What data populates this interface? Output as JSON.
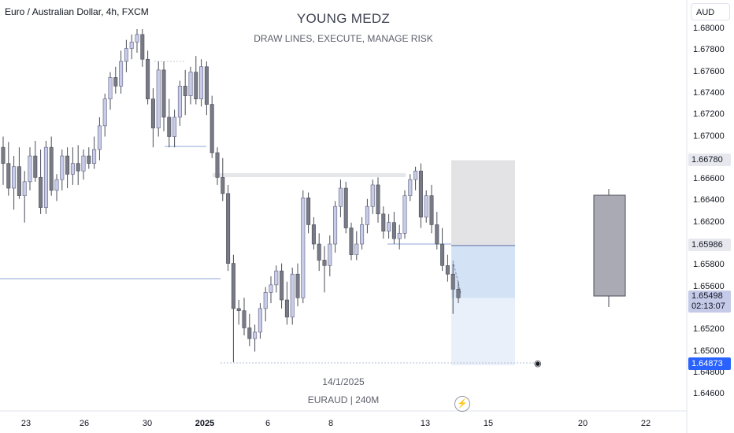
{
  "header": {
    "symbol_title": "Euro / Australian Dollar, 4h, FXCM",
    "currency": "AUD"
  },
  "watermark": {
    "title": "YOUNG MEDZ",
    "subtitle": "DRAW LINES, EXECUTE, MANAGE RISK",
    "date": "14/1/2025",
    "symbol": "EURAUD | 240M"
  },
  "price_tags": {
    "take_profit": "1.66780",
    "entry": "1.65986",
    "current": "1.65498",
    "countdown": "02:13:07",
    "stop": "1.64873"
  },
  "colors": {
    "up_body": "#c8cce8",
    "down_body": "#787b86",
    "wick": "#4a4d57",
    "stop_zone": "#e3e3e6",
    "target_zone": "#d3e3f5",
    "target_zone_light": "#e9f0fa",
    "accent_blue": "#2962ff"
  },
  "icons": {
    "lightning": "lightning-icon",
    "eye": "eye-icon"
  },
  "chart_data": {
    "type": "candlestick",
    "title": "Euro / Australian Dollar, 4h, FXCM",
    "y_axis": {
      "ticks": [
        "1.68000",
        "1.67800",
        "1.67600",
        "1.67400",
        "1.67200",
        "1.67000",
        "1.66800",
        "1.66600",
        "1.66400",
        "1.66200",
        "1.66000",
        "1.65800",
        "1.65600",
        "1.65400",
        "1.65200",
        "1.65000",
        "1.64800",
        "1.64600"
      ],
      "range": [
        1.6455,
        1.681
      ]
    },
    "x_axis": {
      "ticks": [
        {
          "label": "23",
          "bold": false
        },
        {
          "label": "26",
          "bold": false
        },
        {
          "label": "30",
          "bold": false
        },
        {
          "label": "2025",
          "bold": true
        },
        {
          "label": "6",
          "bold": false
        },
        {
          "label": "8",
          "bold": false
        },
        {
          "label": "13",
          "bold": false
        },
        {
          "label": "15",
          "bold": false
        },
        {
          "label": "20",
          "bold": false
        },
        {
          "label": "22",
          "bold": false
        }
      ]
    },
    "candles": [
      [
        1.669,
        1.67,
        1.6655,
        1.6675
      ],
      [
        1.6675,
        1.6695,
        1.6645,
        1.6652
      ],
      [
        1.6652,
        1.6682,
        1.6632,
        1.6672
      ],
      [
        1.6672,
        1.669,
        1.6642,
        1.6645
      ],
      [
        1.6645,
        1.6668,
        1.662,
        1.6658
      ],
      [
        1.6658,
        1.669,
        1.665,
        1.6682
      ],
      [
        1.6682,
        1.6696,
        1.6658,
        1.6662
      ],
      [
        1.6662,
        1.6688,
        1.6628,
        1.6634
      ],
      [
        1.6634,
        1.6696,
        1.6628,
        1.669
      ],
      [
        1.669,
        1.67,
        1.6645,
        1.665
      ],
      [
        1.665,
        1.6665,
        1.664,
        1.666
      ],
      [
        1.666,
        1.6688,
        1.665,
        1.6682
      ],
      [
        1.6682,
        1.669,
        1.6652,
        1.6665
      ],
      [
        1.6665,
        1.669,
        1.6655,
        1.6675
      ],
      [
        1.6675,
        1.6692,
        1.6655,
        1.6668
      ],
      [
        1.6668,
        1.6688,
        1.666,
        1.6682
      ],
      [
        1.6682,
        1.669,
        1.667,
        1.6675
      ],
      [
        1.6675,
        1.67,
        1.667,
        1.6688
      ],
      [
        1.6688,
        1.6718,
        1.6678,
        1.671
      ],
      [
        1.671,
        1.674,
        1.67,
        1.6735
      ],
      [
        1.6735,
        1.676,
        1.6725,
        1.6755
      ],
      [
        1.6755,
        1.6765,
        1.674,
        1.6747
      ],
      [
        1.6747,
        1.678,
        1.674,
        1.677
      ],
      [
        1.677,
        1.679,
        1.676,
        1.6782
      ],
      [
        1.6782,
        1.6795,
        1.6772,
        1.6788
      ],
      [
        1.6788,
        1.68,
        1.6778,
        1.6795
      ],
      [
        1.6795,
        1.68,
        1.6765,
        1.6772
      ],
      [
        1.6772,
        1.678,
        1.673,
        1.6735
      ],
      [
        1.6735,
        1.6745,
        1.669,
        1.6708
      ],
      [
        1.6708,
        1.677,
        1.67,
        1.6762
      ],
      [
        1.6762,
        1.677,
        1.6705,
        1.6718
      ],
      [
        1.6718,
        1.6735,
        1.669,
        1.67
      ],
      [
        1.67,
        1.6725,
        1.669,
        1.6718
      ],
      [
        1.6718,
        1.6752,
        1.671,
        1.6747
      ],
      [
        1.6747,
        1.6762,
        1.672,
        1.6738
      ],
      [
        1.6738,
        1.6765,
        1.673,
        1.676
      ],
      [
        1.676,
        1.6775,
        1.673,
        1.6735
      ],
      [
        1.6735,
        1.6772,
        1.6728,
        1.6765
      ],
      [
        1.6765,
        1.677,
        1.672,
        1.673
      ],
      [
        1.673,
        1.6738,
        1.668,
        1.6685
      ],
      [
        1.6685,
        1.669,
        1.6655,
        1.6662
      ],
      [
        1.6662,
        1.668,
        1.664,
        1.6647
      ],
      [
        1.6647,
        1.6655,
        1.6575,
        1.6582
      ],
      [
        1.6582,
        1.659,
        1.649,
        1.654
      ],
      [
        1.654,
        1.6548,
        1.6525,
        1.6538
      ],
      [
        1.6538,
        1.655,
        1.6515,
        1.6522
      ],
      [
        1.6522,
        1.6535,
        1.6505,
        1.6512
      ],
      [
        1.6512,
        1.6525,
        1.65,
        1.6518
      ],
      [
        1.6518,
        1.6545,
        1.6512,
        1.654
      ],
      [
        1.654,
        1.656,
        1.6528,
        1.6555
      ],
      [
        1.6555,
        1.657,
        1.6545,
        1.6562
      ],
      [
        1.6562,
        1.658,
        1.6555,
        1.6575
      ],
      [
        1.6575,
        1.6582,
        1.654,
        1.6548
      ],
      [
        1.6548,
        1.6565,
        1.6525,
        1.6532
      ],
      [
        1.6532,
        1.6578,
        1.6525,
        1.6572
      ],
      [
        1.6572,
        1.6582,
        1.6542,
        1.655
      ],
      [
        1.655,
        1.665,
        1.6545,
        1.6643
      ],
      [
        1.6643,
        1.6648,
        1.661,
        1.6618
      ],
      [
        1.6618,
        1.6625,
        1.6595,
        1.66
      ],
      [
        1.66,
        1.661,
        1.6575,
        1.6585
      ],
      [
        1.6585,
        1.6598,
        1.6555,
        1.658
      ],
      [
        1.658,
        1.6608,
        1.657,
        1.66
      ],
      [
        1.66,
        1.664,
        1.6592,
        1.6635
      ],
      [
        1.6635,
        1.666,
        1.6625,
        1.6652
      ],
      [
        1.6652,
        1.6658,
        1.661,
        1.6615
      ],
      [
        1.6615,
        1.662,
        1.6585,
        1.659
      ],
      [
        1.659,
        1.6612,
        1.6585,
        1.66
      ],
      [
        1.66,
        1.6625,
        1.6595,
        1.6618
      ],
      [
        1.6618,
        1.6642,
        1.661,
        1.6635
      ],
      [
        1.6635,
        1.666,
        1.6628,
        1.6655
      ],
      [
        1.6655,
        1.6662,
        1.662,
        1.6628
      ],
      [
        1.6628,
        1.6635,
        1.6605,
        1.6612
      ],
      [
        1.6612,
        1.6628,
        1.6605,
        1.662
      ],
      [
        1.662,
        1.663,
        1.66,
        1.6605
      ],
      [
        1.6605,
        1.6618,
        1.6595,
        1.661
      ],
      [
        1.661,
        1.665,
        1.6605,
        1.6645
      ],
      [
        1.6645,
        1.6665,
        1.664,
        1.666
      ],
      [
        1.666,
        1.6672,
        1.665,
        1.6668
      ],
      [
        1.6668,
        1.6675,
        1.6615,
        1.6625
      ],
      [
        1.6625,
        1.665,
        1.662,
        1.6645
      ],
      [
        1.6645,
        1.6655,
        1.661,
        1.6618
      ],
      [
        1.6618,
        1.663,
        1.6595,
        1.66
      ],
      [
        1.66,
        1.6615,
        1.6575,
        1.658
      ],
      [
        1.658,
        1.659,
        1.6565,
        1.6572
      ],
      [
        1.6572,
        1.6582,
        1.6535,
        1.6558
      ],
      [
        1.6558,
        1.6565,
        1.6545,
        1.655
      ]
    ],
    "levels": {
      "take_profit": 1.6678,
      "entry": 1.65986,
      "current": 1.65498,
      "stop": 1.64873
    },
    "grid": false
  }
}
